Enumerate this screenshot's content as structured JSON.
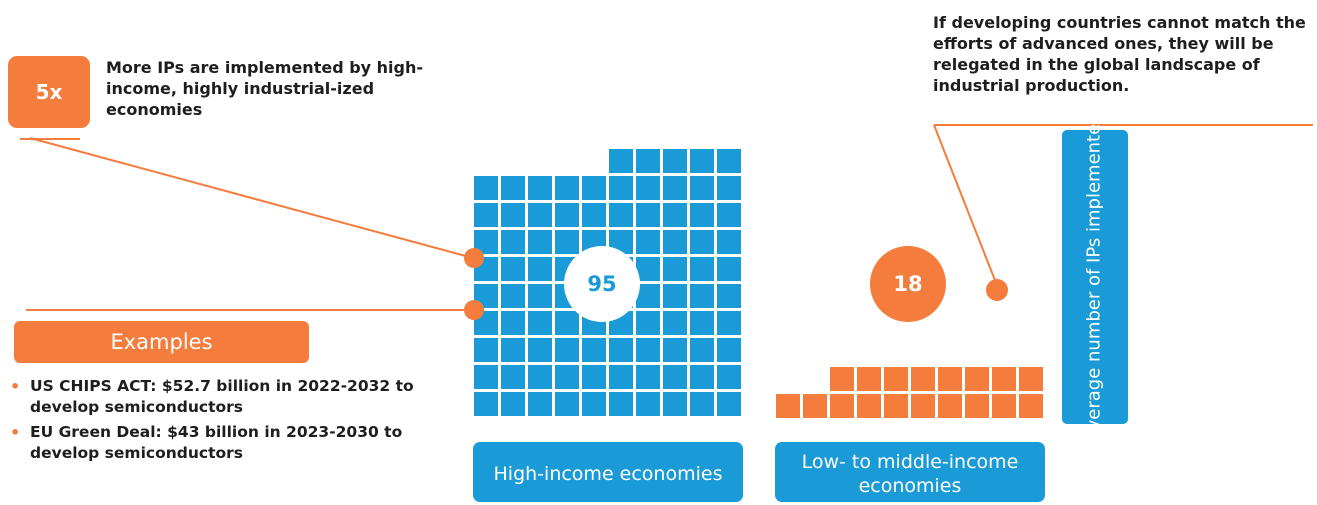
{
  "chart_data": {
    "type": "bar",
    "categories": [
      "High-income economies",
      "Low- to middle-income economies"
    ],
    "values": [
      95,
      18
    ],
    "ylabel": "Average number of IPs implemented",
    "colors": [
      "#1a9ad6",
      "#f47c3c"
    ]
  },
  "groups": {
    "high": {
      "label": "High-income economies",
      "value_label": "95"
    },
    "low": {
      "label": "Low- to middle-income economies",
      "value_label": "18"
    }
  },
  "y_axis_label": "Average number of IPs implemented",
  "badge": {
    "text": "5x"
  },
  "note_5x": "More IPs are implemented by high-income, highly industrial-ized economies",
  "note_developing": "If developing countries cannot match the efforts of advanced ones, they will be relegated  in the global landscape of industrial production.",
  "examples": {
    "title": "Examples",
    "items": [
      "US CHIPS ACT: $52.7 billion in 2022-2032 to develop semiconductors",
      "EU Green Deal: $43 billion in 2023-2030 to develop semiconductors"
    ]
  },
  "colors": {
    "blue": "#1a9ad6",
    "orange": "#f47c3c",
    "text": "#1e1e1e"
  }
}
